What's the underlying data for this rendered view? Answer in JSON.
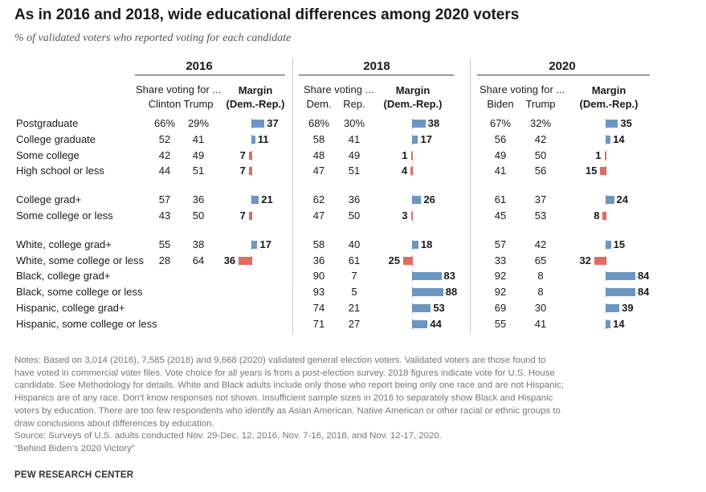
{
  "title": "As in 2016 and 2018, wide educational differences among 2020 voters",
  "subtitle": "% of validated voters who reported voting for each candidate",
  "share_label": "Share voting for ...",
  "share_label_2018": "Share voting ...",
  "margin_label_1": "Margin",
  "margin_label_2": "(Dem.-Rep.)",
  "colors": {
    "dem": "#6a96c1",
    "rep": "#e06b63",
    "text": "#1a1a1a",
    "notes": "#777777"
  },
  "chart_data": {
    "type": "table",
    "years": [
      {
        "year": "2016",
        "dem_label": "Clinton",
        "rep_label": "Trump"
      },
      {
        "year": "2018",
        "dem_label": "Dem.",
        "rep_label": "Rep."
      },
      {
        "year": "2020",
        "dem_label": "Biden",
        "rep_label": "Trump"
      }
    ],
    "rows": [
      {
        "label": "Postgraduate",
        "values": [
          {
            "dem": "66%",
            "rep": "29%",
            "margin": 37,
            "side": "D"
          },
          {
            "dem": "68%",
            "rep": "30%",
            "margin": 38,
            "side": "D"
          },
          {
            "dem": "67%",
            "rep": "32%",
            "margin": 35,
            "side": "D"
          }
        ]
      },
      {
        "label": "College graduate",
        "values": [
          {
            "dem": "52",
            "rep": "41",
            "margin": 11,
            "side": "D"
          },
          {
            "dem": "58",
            "rep": "41",
            "margin": 17,
            "side": "D"
          },
          {
            "dem": "56",
            "rep": "42",
            "margin": 14,
            "side": "D"
          }
        ]
      },
      {
        "label": "Some college",
        "values": [
          {
            "dem": "42",
            "rep": "49",
            "margin": 7,
            "side": "R"
          },
          {
            "dem": "48",
            "rep": "49",
            "margin": 1,
            "side": "R"
          },
          {
            "dem": "49",
            "rep": "50",
            "margin": 1,
            "side": "R"
          }
        ]
      },
      {
        "label": "High school or less",
        "values": [
          {
            "dem": "44",
            "rep": "51",
            "margin": 7,
            "side": "R"
          },
          {
            "dem": "47",
            "rep": "51",
            "margin": 4,
            "side": "R"
          },
          {
            "dem": "41",
            "rep": "56",
            "margin": 15,
            "side": "R"
          }
        ]
      },
      {
        "label": "College grad+",
        "group_start": true,
        "values": [
          {
            "dem": "57",
            "rep": "36",
            "margin": 21,
            "side": "D"
          },
          {
            "dem": "62",
            "rep": "36",
            "margin": 26,
            "side": "D"
          },
          {
            "dem": "61",
            "rep": "37",
            "margin": 24,
            "side": "D"
          }
        ]
      },
      {
        "label": "Some college or less",
        "values": [
          {
            "dem": "43",
            "rep": "50",
            "margin": 7,
            "side": "R"
          },
          {
            "dem": "47",
            "rep": "50",
            "margin": 3,
            "side": "R"
          },
          {
            "dem": "45",
            "rep": "53",
            "margin": 8,
            "side": "R"
          }
        ]
      },
      {
        "label": "White, college grad+",
        "group_start": true,
        "values": [
          {
            "dem": "55",
            "rep": "38",
            "margin": 17,
            "side": "D"
          },
          {
            "dem": "58",
            "rep": "40",
            "margin": 18,
            "side": "D"
          },
          {
            "dem": "57",
            "rep": "42",
            "margin": 15,
            "side": "D"
          }
        ]
      },
      {
        "label": "White, some college or less",
        "values": [
          {
            "dem": "28",
            "rep": "64",
            "margin": 36,
            "side": "R"
          },
          {
            "dem": "36",
            "rep": "61",
            "margin": 25,
            "side": "R"
          },
          {
            "dem": "33",
            "rep": "65",
            "margin": 32,
            "side": "R"
          }
        ]
      },
      {
        "label": "Black, college grad+",
        "values": [
          null,
          {
            "dem": "90",
            "rep": "7",
            "margin": 83,
            "side": "D"
          },
          {
            "dem": "92",
            "rep": "8",
            "margin": 84,
            "side": "D"
          }
        ]
      },
      {
        "label": "Black, some college or less",
        "values": [
          null,
          {
            "dem": "93",
            "rep": "5",
            "margin": 88,
            "side": "D"
          },
          {
            "dem": "92",
            "rep": "8",
            "margin": 84,
            "side": "D"
          }
        ]
      },
      {
        "label": "Hispanic, college grad+",
        "values": [
          null,
          {
            "dem": "74",
            "rep": "21",
            "margin": 53,
            "side": "D"
          },
          {
            "dem": "69",
            "rep": "30",
            "margin": 39,
            "side": "D"
          }
        ]
      },
      {
        "label": "Hispanic, some college or less",
        "values": [
          null,
          {
            "dem": "71",
            "rep": "27",
            "margin": 44,
            "side": "D"
          },
          {
            "dem": "55",
            "rep": "41",
            "margin": 14,
            "side": "D"
          }
        ]
      }
    ]
  },
  "notes": [
    "Notes: Based on 3,014 (2016), 7,585 (2018) and 9,668 (2020) validated general election voters. Validated voters are those found to",
    "have voted in commercial voter files. Vote choice for all years is from a post-election survey. 2018 figures indicate vote for U.S. House",
    "candidate. See Methodology for details. White and Black adults include only those who report being only one race and are not Hispanic;",
    "Hispanics are of any race. Don’t know responses not shown. Insufficient sample sizes in 2016 to separately show Black and Hispanic",
    "voters by education. There are too few respondents who identify as Asian American, Native American or other racial or ethnic groups to",
    "draw conclusions about differences by education.",
    "Source: Surveys of U.S. adults conducted Nov. 29-Dec. 12, 2016, Nov. 7-16, 2018, and Nov. 12-17, 2020.",
    "“Behind Biden’s 2020 Victory”"
  ],
  "source_org": "PEW RESEARCH CENTER"
}
